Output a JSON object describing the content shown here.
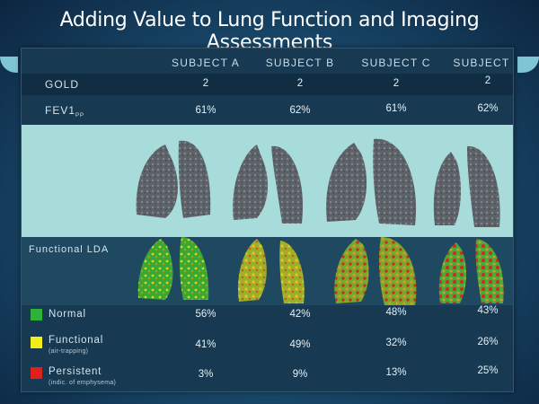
{
  "title": "Adding Value to Lung Function and Imaging Assessments",
  "subjects": [
    "SUBJECT A",
    "SUBJECT B",
    "SUBJECT C",
    "SUBJECT D"
  ],
  "rows": {
    "gold": {
      "label": "GOLD",
      "values": [
        "2",
        "2",
        "2",
        "2"
      ]
    },
    "fev1": {
      "label": "FEV1",
      "sub": "PP",
      "values": [
        "61%",
        "62%",
        "61%",
        "62%"
      ]
    }
  },
  "lda_label": "Functional LDA",
  "legend": [
    {
      "label": "Normal",
      "sub": "",
      "color": "#2eb33a",
      "values": [
        "56%",
        "42%",
        "48%",
        "43%"
      ]
    },
    {
      "label": "Functional",
      "sub": "(air-trapping)",
      "color": "#f2ee1a",
      "values": [
        "41%",
        "49%",
        "32%",
        "26%"
      ]
    },
    {
      "label": "Persistent",
      "sub": "(indic. of emphysema)",
      "color": "#e0201c",
      "values": [
        "3%",
        "9%",
        "13%",
        "25%"
      ]
    }
  ],
  "colors": {
    "panel": "#173a52",
    "ct_band": "#a7dcdb",
    "accent_band": "#7fc6d4"
  }
}
